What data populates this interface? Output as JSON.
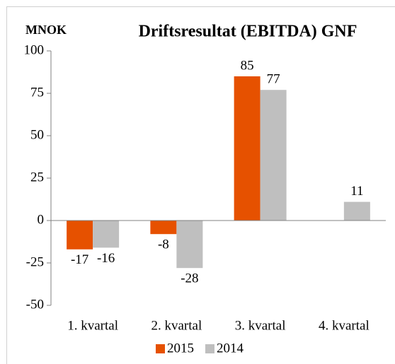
{
  "chart_data": {
    "type": "bar",
    "title": "Driftsresultat (EBITDA) GNF",
    "y_axis_label": "MNOK",
    "categories": [
      "1. kvartal",
      "2. kvartal",
      "3. kvartal",
      "4. kvartal"
    ],
    "series": [
      {
        "name": "2015",
        "color": "#e65100",
        "values": [
          -17,
          -8,
          85,
          null
        ]
      },
      {
        "name": "2014",
        "color": "#bfbfbf",
        "values": [
          -16,
          -28,
          77,
          11
        ]
      }
    ],
    "ylim": [
      -50,
      100
    ],
    "yticks": [
      -50,
      -25,
      0,
      25,
      50,
      75,
      100
    ],
    "grid": false,
    "legend": "bottom"
  }
}
